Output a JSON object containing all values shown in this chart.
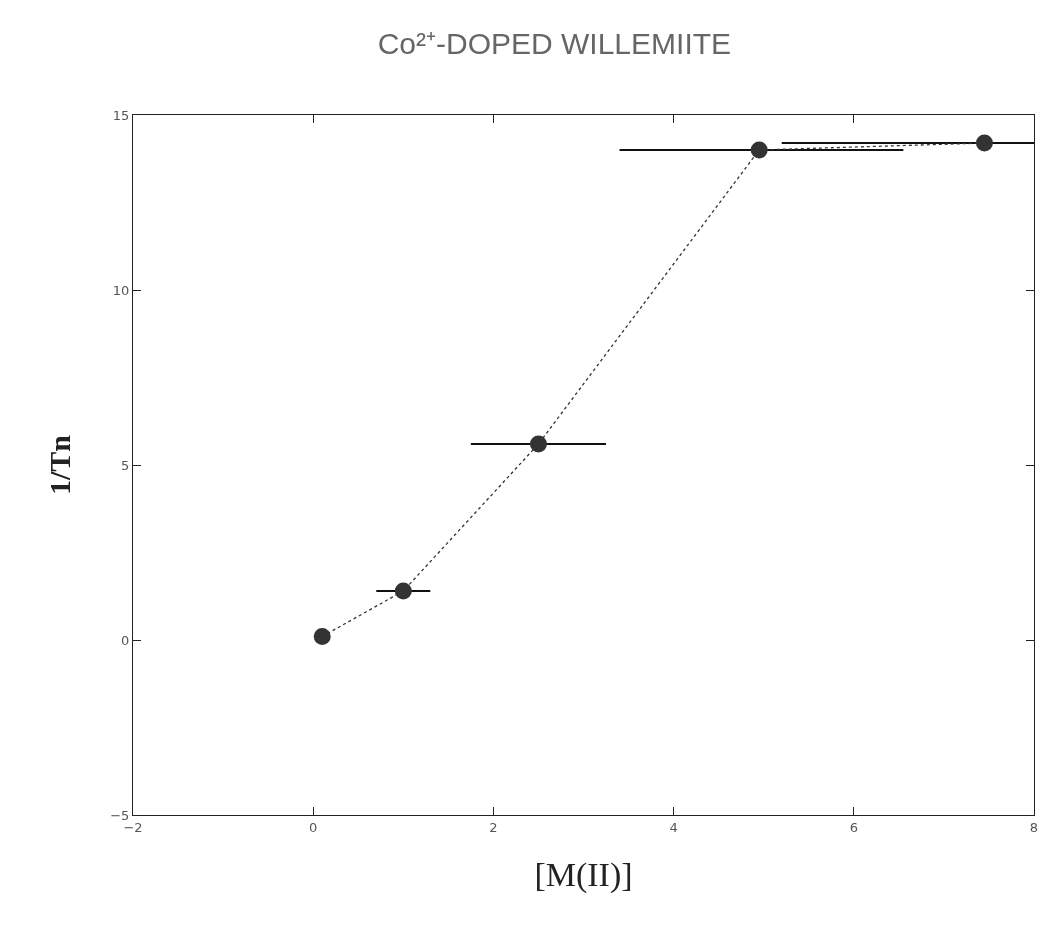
{
  "chart_data": {
    "type": "line",
    "title": "Co²⁺-DOPED WILLEMIITE",
    "xlabel": "[M(II)]",
    "ylabel": "1/Tn",
    "x": [
      0.1,
      1.0,
      2.5,
      4.95,
      7.45
    ],
    "series": [
      {
        "color": "#333333",
        "values": [
          0.1,
          1.4,
          5.6,
          14.0,
          14.2
        ],
        "xerrors": [
          null,
          0.3,
          0.75,
          [
            3.4,
            6.55
          ],
          [
            5.2,
            8.0
          ]
        ]
      }
    ],
    "xlim": [
      -2,
      8
    ],
    "xticks": [
      -2,
      0,
      2,
      4,
      6,
      8
    ],
    "ylim": [
      -5,
      15
    ],
    "yticks": [
      -5,
      0,
      5,
      10,
      15
    ],
    "marker": "circle",
    "line_style": "dotted"
  }
}
